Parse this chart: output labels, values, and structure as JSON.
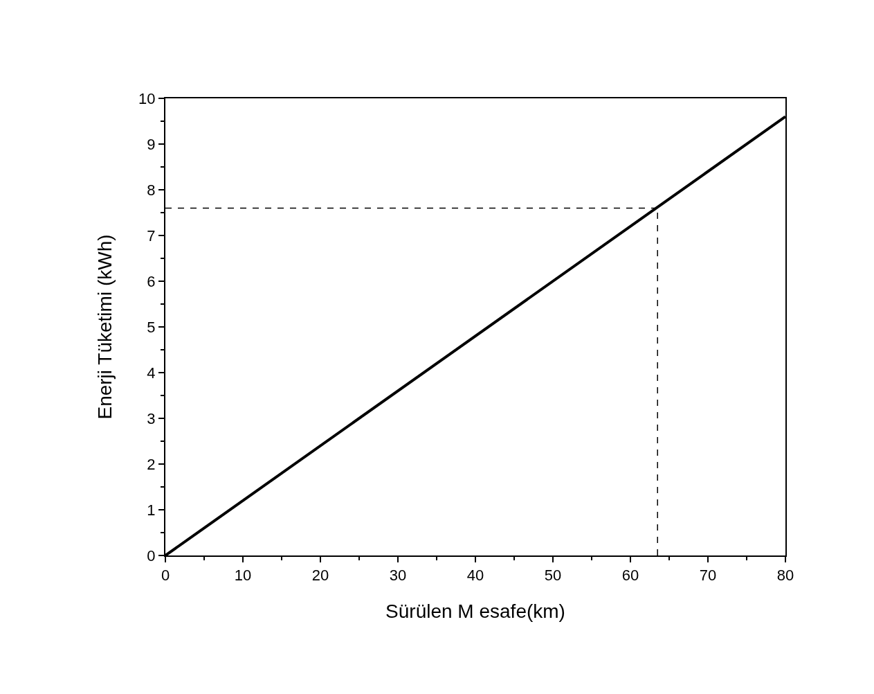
{
  "chart_data": {
    "type": "line",
    "xlabel": "Sürülen M esafe(km)",
    "ylabel": "Enerji Tüketimi (kWh)",
    "x": [
      0,
      80
    ],
    "series": [
      {
        "color": "#000000",
        "values": [
          0,
          9.6
        ]
      }
    ],
    "xlim": [
      0,
      80
    ],
    "ylim": [
      0,
      10
    ],
    "xticks": [
      0,
      10,
      20,
      30,
      40,
      50,
      60,
      70,
      80
    ],
    "yticks": [
      0,
      1,
      2,
      3,
      4,
      5,
      6,
      7,
      8,
      9,
      10
    ],
    "ref_lines": [
      {
        "axis": "x",
        "value": 63.5,
        "line_style": "dashed",
        "color": "#000000"
      },
      {
        "axis": "y",
        "value": 7.6,
        "line_style": "dashed",
        "color": "#000000"
      }
    ],
    "line_style": "solid"
  }
}
